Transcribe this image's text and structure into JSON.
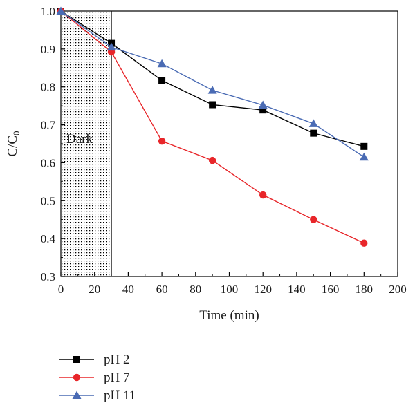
{
  "chart_data": {
    "type": "line",
    "xlabel": "Time (min)",
    "ylabel_main": "C/C",
    "ylabel_sub": "0",
    "xlim": [
      0,
      200
    ],
    "ylim": [
      0.3,
      1.0
    ],
    "xticks": [
      "0",
      "20",
      "40",
      "60",
      "80",
      "100",
      "120",
      "140",
      "160",
      "180",
      "200"
    ],
    "yticks": [
      "0.3",
      "0.4",
      "0.5",
      "0.6",
      "0.7",
      "0.8",
      "0.9",
      "1.0"
    ],
    "grid": false,
    "legend_position": "below",
    "annotation": {
      "text": "Dark",
      "region_x": [
        0,
        30
      ]
    },
    "x": [
      0,
      30,
      60,
      90,
      120,
      150,
      180
    ],
    "series": [
      {
        "name": "pH 2",
        "color": "#000000",
        "marker": "square",
        "values": [
          1.0,
          0.915,
          0.817,
          0.753,
          0.739,
          0.678,
          0.643
        ]
      },
      {
        "name": "pH 7",
        "color": "#e8262a",
        "marker": "circle",
        "values": [
          1.0,
          0.892,
          0.657,
          0.606,
          0.515,
          0.45,
          0.388
        ]
      },
      {
        "name": "pH 11",
        "color": "#4a6bb4",
        "marker": "triangle",
        "values": [
          1.0,
          0.905,
          0.861,
          0.791,
          0.752,
          0.703,
          0.615
        ]
      }
    ]
  }
}
